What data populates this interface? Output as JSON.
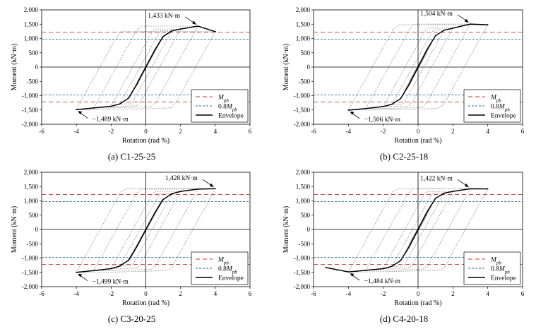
{
  "chart_data": [
    {
      "type": "line",
      "caption": "(a) C1-25-25",
      "xlabel": "Rotation (rad %)",
      "ylabel": "Moment (kN·m)",
      "xlim": [
        -6,
        6
      ],
      "ylim": [
        -2000,
        2000
      ],
      "xticks": [
        "-6",
        "-4",
        "-2",
        "0",
        "2",
        "4",
        "6"
      ],
      "yticks": [
        "2,000",
        "1,500",
        "1,000",
        "500",
        "0",
        "-500",
        "-1,000",
        "-1,500",
        "-2,000"
      ],
      "grid": false,
      "legend_position": "bottom-right",
      "legend": [
        "M_pb",
        "0.8M_pb",
        "Envelope"
      ],
      "reference_lines": [
        {
          "name": "M_pb",
          "values": [
            1220,
            -1220
          ],
          "color": "#c0392b",
          "dash": "long"
        },
        {
          "name": "0.8M_pb",
          "values": [
            976,
            -976
          ],
          "color": "#2e6e9e",
          "dash": "short"
        }
      ],
      "max_label": "1,433 kN·m",
      "min_label": "−1,489 kN·m",
      "max_point": [
        3.0,
        1433
      ],
      "min_point": [
        -4.0,
        -1489
      ],
      "envelope_pos": {
        "x": [
          0,
          0.5,
          1.0,
          1.5,
          2.0,
          3.0,
          4.0
        ],
        "y": [
          0,
          580,
          1070,
          1270,
          1330,
          1433,
          1240
        ]
      },
      "envelope_neg": {
        "x": [
          0,
          -0.5,
          -1.0,
          -1.5,
          -2.0,
          -3.0,
          -4.0
        ],
        "y": [
          0,
          -590,
          -1090,
          -1290,
          -1370,
          -1430,
          -1489
        ]
      },
      "cycle_amplitudes": [
        0.375,
        0.5,
        0.75,
        1.0,
        1.5,
        2.0,
        3.0,
        4.0
      ],
      "series": [
        {
          "name": "Envelope",
          "color": "#000000"
        }
      ]
    },
    {
      "type": "line",
      "caption": "(b) C2-25-18",
      "xlabel": "Rotation (rad %)",
      "ylabel": "Moment (kN·m)",
      "xlim": [
        -6,
        6
      ],
      "ylim": [
        -2000,
        2000
      ],
      "xticks": [
        "-6",
        "-4",
        "-2",
        "0",
        "2",
        "4",
        "6"
      ],
      "yticks": [
        "2,000",
        "1,500",
        "1,000",
        "500",
        "0",
        "-500",
        "-1,000",
        "-1,500",
        "-2,000"
      ],
      "grid": false,
      "legend_position": "bottom-right",
      "legend": [
        "M_pb",
        "0.8M_pb",
        "Envelope"
      ],
      "reference_lines": [
        {
          "name": "M_pb",
          "values": [
            1220,
            -1220
          ],
          "color": "#c0392b",
          "dash": "long"
        },
        {
          "name": "0.8M_pb",
          "values": [
            976,
            -976
          ],
          "color": "#2e6e9e",
          "dash": "short"
        }
      ],
      "max_label": "1,504 kN·m",
      "min_label": "−1,506 kN·m",
      "max_point": [
        3.0,
        1504
      ],
      "min_point": [
        -4.0,
        -1506
      ],
      "envelope_pos": {
        "x": [
          0,
          0.5,
          1.0,
          1.5,
          2.0,
          3.0,
          4.0
        ],
        "y": [
          0,
          600,
          1100,
          1290,
          1360,
          1504,
          1480
        ]
      },
      "envelope_neg": {
        "x": [
          0,
          -0.5,
          -1.0,
          -1.5,
          -2.0,
          -3.0,
          -4.0
        ],
        "y": [
          0,
          -600,
          -1100,
          -1300,
          -1380,
          -1450,
          -1506
        ]
      },
      "cycle_amplitudes": [
        0.375,
        0.5,
        0.75,
        1.0,
        1.5,
        2.0,
        3.0,
        4.0
      ],
      "series": [
        {
          "name": "Envelope",
          "color": "#000000"
        }
      ]
    },
    {
      "type": "line",
      "caption": "(c) C3-20-25",
      "xlabel": "Rotation (rad %)",
      "ylabel": "Moment (kN·m)",
      "xlim": [
        -6,
        6
      ],
      "ylim": [
        -2000,
        2000
      ],
      "xticks": [
        "-6",
        "-4",
        "-2",
        "0",
        "2",
        "4",
        "6"
      ],
      "yticks": [
        "2,000",
        "1,500",
        "1,000",
        "500",
        "0",
        "-500",
        "-1,000",
        "-1,500",
        "-2,000"
      ],
      "grid": false,
      "legend_position": "bottom-right",
      "legend": [
        "M_pb",
        "0.8M_pb",
        "Envelope"
      ],
      "reference_lines": [
        {
          "name": "M_pb",
          "values": [
            1220,
            -1220
          ],
          "color": "#c0392b",
          "dash": "long"
        },
        {
          "name": "0.8M_pb",
          "values": [
            976,
            -976
          ],
          "color": "#2e6e9e",
          "dash": "short"
        }
      ],
      "max_label": "1,428 kN·m",
      "min_label": "−1,499 kN·m",
      "max_point": [
        4.0,
        1428
      ],
      "min_point": [
        -4.0,
        -1499
      ],
      "envelope_pos": {
        "x": [
          0,
          0.5,
          1.0,
          1.5,
          2.0,
          3.0,
          4.0
        ],
        "y": [
          0,
          560,
          1050,
          1250,
          1330,
          1410,
          1428
        ]
      },
      "envelope_neg": {
        "x": [
          0,
          -0.5,
          -1.0,
          -1.5,
          -2.0,
          -3.0,
          -4.0
        ],
        "y": [
          0,
          -580,
          -1080,
          -1280,
          -1370,
          -1440,
          -1499
        ]
      },
      "cycle_amplitudes": [
        0.375,
        0.5,
        0.75,
        1.0,
        1.5,
        2.0,
        3.0,
        4.0
      ],
      "series": [
        {
          "name": "Envelope",
          "color": "#000000"
        }
      ]
    },
    {
      "type": "line",
      "caption": "(d) C4-20-18",
      "xlabel": "Rotation (rad %)",
      "ylabel": "Moment (kN·m)",
      "xlim": [
        -6,
        6
      ],
      "ylim": [
        -2000,
        2000
      ],
      "xticks": [
        "-6",
        "-4",
        "-2",
        "0",
        "2",
        "4",
        "6"
      ],
      "yticks": [
        "2,000",
        "1,500",
        "1,000",
        "500",
        "0",
        "-500",
        "-1,000",
        "-1,500",
        "-2,000"
      ],
      "grid": false,
      "legend_position": "bottom-right",
      "legend": [
        "M_pb",
        "0.8M_pb",
        "Envelope"
      ],
      "reference_lines": [
        {
          "name": "M_pb",
          "values": [
            1220,
            -1220
          ],
          "color": "#c0392b",
          "dash": "long"
        },
        {
          "name": "0.8M_pb",
          "values": [
            976,
            -976
          ],
          "color": "#2e6e9e",
          "dash": "short"
        }
      ],
      "max_label": "1,422 kN·m",
      "min_label": "−1,484 kN·m",
      "max_point": [
        3.0,
        1422
      ],
      "min_point": [
        -4.0,
        -1484
      ],
      "envelope_pos": {
        "x": [
          0,
          0.5,
          1.0,
          1.5,
          2.0,
          3.0,
          4.0
        ],
        "y": [
          0,
          600,
          1090,
          1270,
          1330,
          1422,
          1420
        ]
      },
      "envelope_neg": {
        "x": [
          0,
          -0.5,
          -1.0,
          -1.5,
          -2.0,
          -3.0,
          -4.0,
          -5.3
        ],
        "y": [
          0,
          -600,
          -1090,
          -1290,
          -1370,
          -1430,
          -1484,
          -1330
        ]
      },
      "cycle_amplitudes": [
        0.375,
        0.5,
        0.75,
        1.0,
        1.5,
        2.0,
        3.0,
        4.0
      ],
      "series": [
        {
          "name": "Envelope",
          "color": "#000000"
        }
      ]
    }
  ]
}
